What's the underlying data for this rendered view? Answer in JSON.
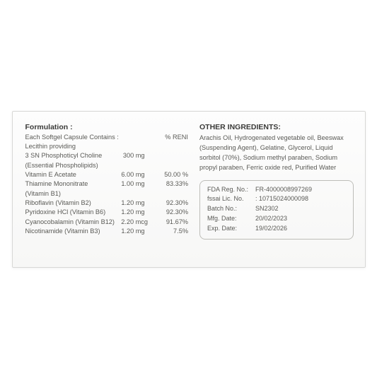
{
  "background_color": "#ffffff",
  "label": {
    "box_border_color": "#d8d8d6",
    "box_bg_top": "#fdfdfd",
    "box_bg_bottom": "#f7f7f6",
    "text_color": "#5a5a56",
    "heading_color": "#3a3a38",
    "font_size_body": 9.2,
    "font_size_heading": 10.5
  },
  "formulation": {
    "heading": "Formulation :",
    "line1": "Each Softgel Capsule Contains :",
    "reni_label": "% RENI",
    "line2": "Lecithin providing",
    "rows": [
      {
        "name": "3 SN Phosphoticyl Choline",
        "sub": "(Essential Phospholipids)",
        "amount": "300 mg",
        "reni": ""
      },
      {
        "name": "Vitamin E Acetate",
        "amount": "6.00 mg",
        "reni": "50.00 %"
      },
      {
        "name": "Thiamine Mononitrate",
        "sub": "(Vitamin B1)",
        "amount": "1.00 mg",
        "reni": "83.33%"
      },
      {
        "name": "Riboflavin (Vitamin B2)",
        "amount": "1.20 mg",
        "reni": "92.30%"
      },
      {
        "name": "Pyridoxine HCl (Vitamin B6)",
        "amount": "1.20 mg",
        "reni": "92.30%"
      },
      {
        "name": "Cyanocobalamin (Vitamin B12)",
        "amount": "2.20 mcg",
        "reni": "91.67%"
      },
      {
        "name": "Nicotinamide (Vitamin B3)",
        "amount": "1.20 mg",
        "reni": "7.5%"
      }
    ]
  },
  "other": {
    "heading": "OTHER INGREDIENTS:",
    "text": "Arachis Oil, Hydrogenated vegetable oil, Beeswax (Suspending Agent), Gelatine, Glycerol, Liquid sorbitol (70%), Sodium methyl paraben, Sodium propyl paraben, Ferric oxide red, Purified Water"
  },
  "reg": {
    "border_color": "#bdbdb9",
    "rows": [
      {
        "k": "FDA Reg. No.:",
        "v": "FR-4000008997269"
      },
      {
        "k": "fssai Lic. No.",
        "v": ": 10715024000098"
      },
      {
        "k": "Batch No.:",
        "v": "SN2302"
      },
      {
        "k": "Mfg. Date:",
        "v": "20/02/2023"
      },
      {
        "k": "Exp. Date:",
        "v": "19/02/2026"
      }
    ]
  }
}
